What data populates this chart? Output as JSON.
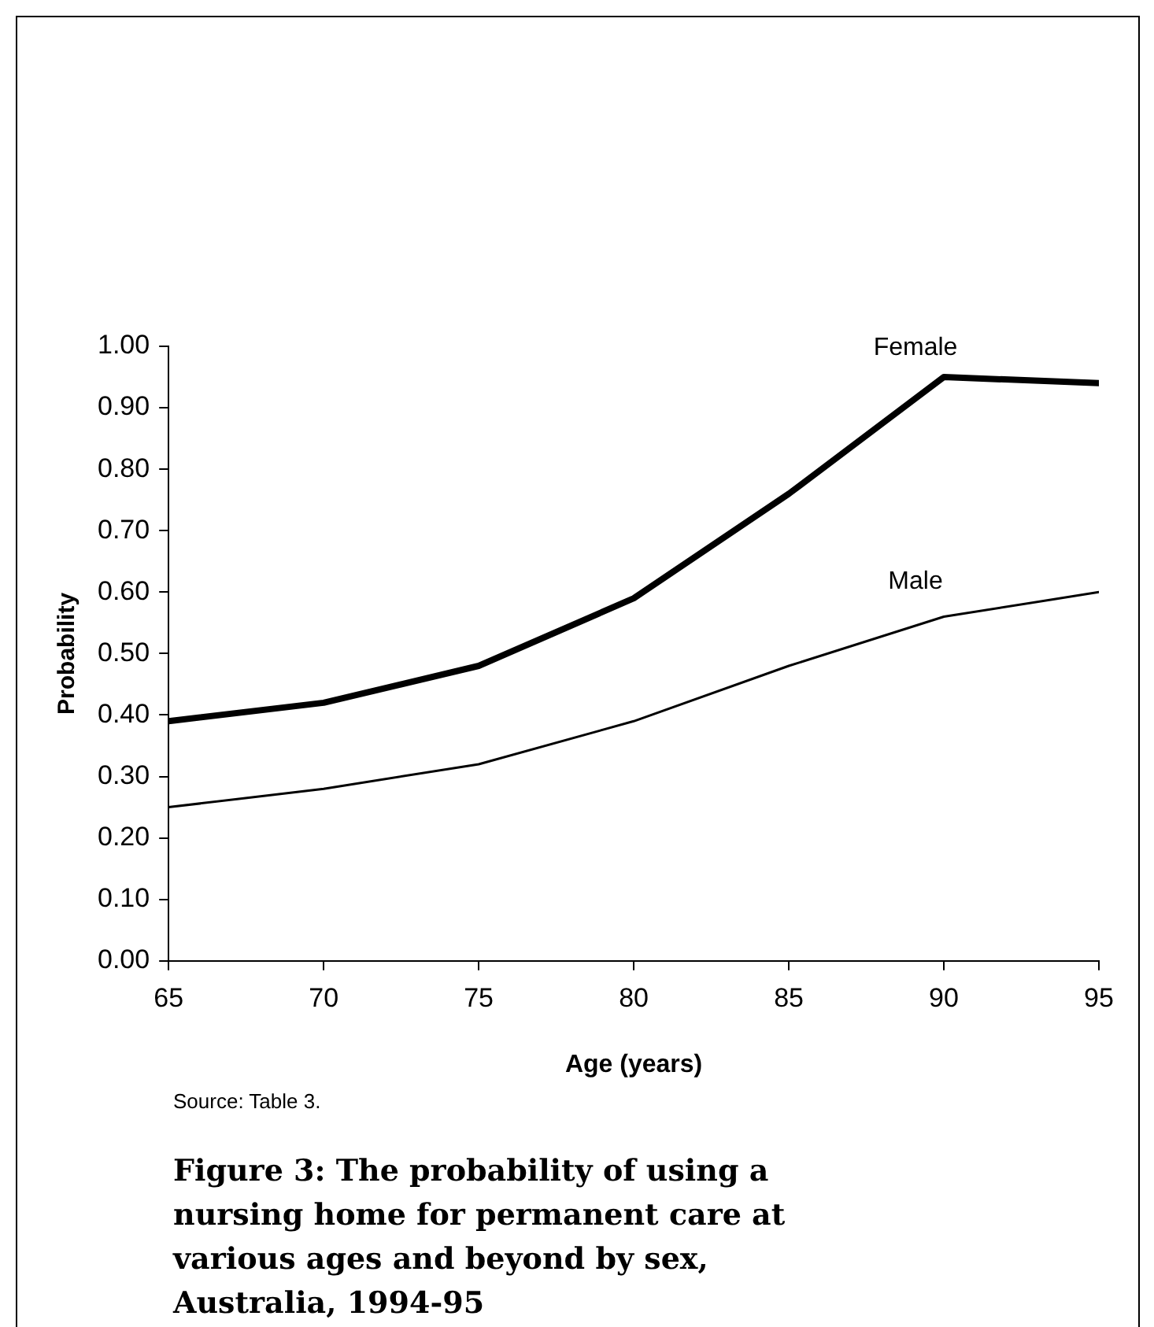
{
  "chart_data": {
    "type": "line",
    "title": "Figure 3: The probability of using a nursing home for permanent care at various ages and beyond by sex, Australia, 1994-95",
    "xlabel": "Age (years)",
    "ylabel": "Probability",
    "annotations": [
      "Source: Table 3."
    ],
    "x": [
      65,
      70,
      75,
      80,
      85,
      90,
      95
    ],
    "xlim": [
      65,
      95
    ],
    "xticks": [
      65,
      70,
      75,
      80,
      85,
      90,
      95
    ],
    "ylim": [
      0,
      1
    ],
    "yticks": [
      {
        "value": 0,
        "label": "0.00"
      },
      {
        "value": 0.1,
        "label": "0.10"
      },
      {
        "value": 0.2,
        "label": "0.20"
      },
      {
        "value": 0.3,
        "label": "0.30"
      },
      {
        "value": 0.4,
        "label": "0.40"
      },
      {
        "value": 0.5,
        "label": "0.50"
      },
      {
        "value": 0.6,
        "label": "0.60"
      },
      {
        "value": 0.7,
        "label": "0.70"
      },
      {
        "value": 0.8,
        "label": "0.80"
      },
      {
        "value": 0.9,
        "label": "0.90"
      },
      {
        "value": 1,
        "label": "1.00"
      }
    ],
    "series": [
      {
        "name": "Female",
        "color": "#000000",
        "values": [
          0.39,
          0.42,
          0.48,
          0.59,
          0.76,
          0.95,
          0.94
        ]
      },
      {
        "name": "Male",
        "color": "#000000",
        "values": [
          0.25,
          0.28,
          0.32,
          0.39,
          0.48,
          0.56,
          0.6
        ]
      }
    ],
    "grid": false,
    "legend": false,
    "marker": "none",
    "line_style": "solid"
  }
}
